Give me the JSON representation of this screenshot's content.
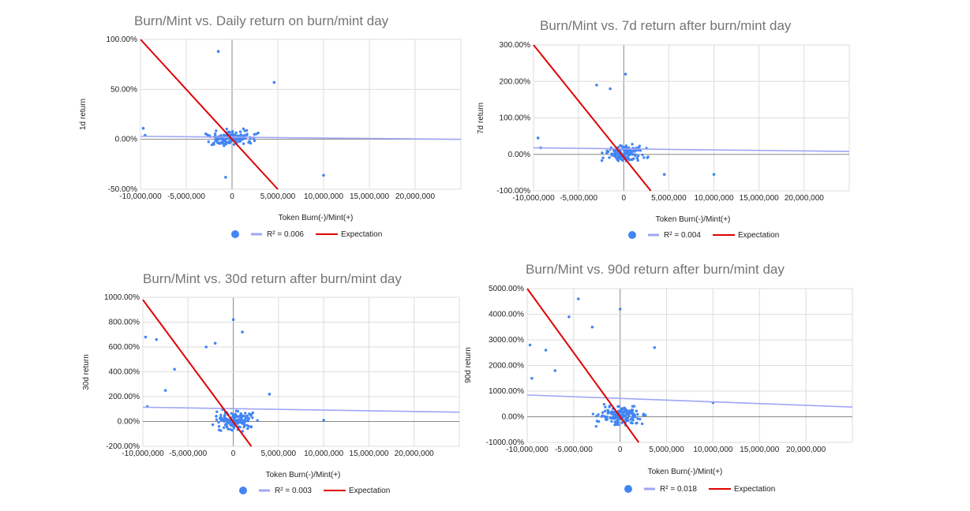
{
  "chart_data": [
    {
      "type": "scatter",
      "title": "Burn/Mint vs. Daily return on burn/mint day",
      "xlabel": "Token Burn(-)/Mint(+)",
      "ylabel": "1d return",
      "xlim": [
        -10000000,
        25000000
      ],
      "ylim": [
        -50,
        100
      ],
      "x_ticks": [
        -10000000,
        -5000000,
        0,
        5000000,
        10000000,
        15000000,
        20000000
      ],
      "x_tick_labels": [
        "-10,000,000",
        "-5,000,000",
        "0",
        "5,000,000",
        "10,000,000",
        "15,000,000",
        "20,000,000"
      ],
      "y_ticks": [
        -50,
        0,
        50,
        100
      ],
      "y_tick_labels": [
        "-50.00%",
        "0.00%",
        "50.00%",
        "100.00%"
      ],
      "trendline": {
        "y_at_xmin": 3,
        "y_at_xmax": 0,
        "r2_label": "R² = 0.006"
      },
      "expectation": {
        "x1": -10000000,
        "y1": 100,
        "x2": 5000000,
        "y2": -50,
        "label": "Expectation"
      },
      "outliers": [
        [
          -1500000,
          88
        ],
        [
          4600000,
          57
        ],
        [
          10000000,
          -36
        ],
        [
          -700000,
          -38
        ],
        [
          -9700000,
          11
        ],
        [
          -9500000,
          4
        ]
      ],
      "cluster": {
        "spread_x": 4000000,
        "spread_y": 12,
        "count": 140
      },
      "legend": [
        "",
        "R² = 0.006",
        "Expectation"
      ]
    },
    {
      "type": "scatter",
      "title": "Burn/Mint vs. 7d return after burn/mint day",
      "xlabel": "Token Burn(-)/Mint(+)",
      "ylabel": "7d return",
      "xlim": [
        -10000000,
        25000000
      ],
      "ylim": [
        -100,
        300
      ],
      "x_ticks": [
        -10000000,
        -5000000,
        0,
        5000000,
        10000000,
        15000000,
        20000000
      ],
      "x_tick_labels": [
        "-10,000,000",
        "-5,000,000",
        "0",
        "5,000,000",
        "10,000,000",
        "15,000,000",
        "20,000,000"
      ],
      "y_ticks": [
        -100,
        0,
        100,
        200,
        300
      ],
      "y_tick_labels": [
        "-100.00%",
        "0.00%",
        "100.00%",
        "200.00%",
        "300.00%"
      ],
      "trendline": {
        "y_at_xmin": 18,
        "y_at_xmax": 8,
        "r2_label": "R² = 0.004"
      },
      "expectation": {
        "x1": -10000000,
        "y1": 300,
        "x2": 3000000,
        "y2": -100,
        "label": "Expectation"
      },
      "outliers": [
        [
          200000,
          220
        ],
        [
          -3000000,
          190
        ],
        [
          -1500000,
          180
        ],
        [
          10000000,
          -55
        ],
        [
          4500000,
          -55
        ],
        [
          -9500000,
          45
        ],
        [
          -9200000,
          18
        ]
      ],
      "cluster": {
        "spread_x": 3500000,
        "spread_y": 35,
        "count": 140
      },
      "legend": [
        "",
        "R² = 0.004",
        "Expectation"
      ]
    },
    {
      "type": "scatter",
      "title": "Burn/Mint vs. 30d return after burn/mint day",
      "xlabel": "Token Burn(-)/Mint(+)",
      "ylabel": "30d return",
      "xlim": [
        -10000000,
        25000000
      ],
      "ylim": [
        -200,
        1000
      ],
      "x_ticks": [
        -10000000,
        -5000000,
        0,
        5000000,
        10000000,
        15000000,
        20000000
      ],
      "x_tick_labels": [
        "-10,000,000",
        "-5,000,000",
        "0",
        "5,000,000",
        "10,000,000",
        "15,000,000",
        "20,000,000"
      ],
      "y_ticks": [
        -200,
        0,
        200,
        400,
        600,
        800,
        1000
      ],
      "y_tick_labels": [
        "-200.00%",
        "0.00%",
        "200.00%",
        "400.00%",
        "600.00%",
        "800.00%",
        "1000.00%"
      ],
      "trendline": {
        "y_at_xmin": 115,
        "y_at_xmax": 75,
        "r2_label": "R² = 0.003"
      },
      "expectation": {
        "x1": -10000000,
        "y1": 980,
        "x2": 2000000,
        "y2": -200,
        "label": "Expectation"
      },
      "outliers": [
        [
          -9700000,
          680
        ],
        [
          -8500000,
          660
        ],
        [
          0,
          820
        ],
        [
          1000000,
          720
        ],
        [
          -2000000,
          630
        ],
        [
          -3000000,
          600
        ],
        [
          10000000,
          10
        ],
        [
          4000000,
          220
        ],
        [
          -9500000,
          120
        ],
        [
          -6500000,
          420
        ],
        [
          -7500000,
          250
        ]
      ],
      "cluster": {
        "spread_x": 3500000,
        "spread_y": 120,
        "count": 150
      },
      "legend": [
        "",
        "R² = 0.003",
        "Expectation"
      ]
    },
    {
      "type": "scatter",
      "title": "Burn/Mint vs. 90d return after burn/mint day",
      "xlabel": "Token Burn(-)/Mint(+)",
      "ylabel": "90d return",
      "xlim": [
        -10000000,
        25000000
      ],
      "ylim": [
        -1000,
        5000
      ],
      "x_ticks": [
        -10000000,
        -5000000,
        0,
        5000000,
        10000000,
        15000000,
        20000000
      ],
      "x_tick_labels": [
        "-10,000,000",
        "-5,000,000",
        "0",
        "5,000,000",
        "10,000,000",
        "15,000,000",
        "20,000,000"
      ],
      "y_ticks": [
        -1000,
        0,
        1000,
        2000,
        3000,
        4000,
        5000
      ],
      "y_tick_labels": [
        "-1000.00%",
        "0.00%",
        "1000.00%",
        "2000.00%",
        "3000.00%",
        "4000.00%",
        "5000.00%"
      ],
      "trendline": {
        "y_at_xmin": 850,
        "y_at_xmax": 380,
        "r2_label": "R² = 0.018"
      },
      "expectation": {
        "x1": -10000000,
        "y1": 5000,
        "x2": 2000000,
        "y2": -1000,
        "label": "Expectation"
      },
      "outliers": [
        [
          -4500000,
          4600
        ],
        [
          -5500000,
          3900
        ],
        [
          -3000000,
          3500
        ],
        [
          0,
          4200
        ],
        [
          -9700000,
          2800
        ],
        [
          -8000000,
          2600
        ],
        [
          3700000,
          2700
        ],
        [
          10000000,
          550
        ],
        [
          -9500000,
          1500
        ],
        [
          -7000000,
          1800
        ]
      ],
      "cluster": {
        "spread_x": 3500000,
        "spread_y": 600,
        "count": 160
      },
      "legend": [
        "",
        "R² = 0.018",
        "Expectation"
      ]
    }
  ],
  "colors": {
    "points": "#4285f4",
    "trend": "#9fa6f5",
    "expectation": "#e00000",
    "grid": "#dddddd",
    "axis": "#888888",
    "title": "#757575"
  }
}
